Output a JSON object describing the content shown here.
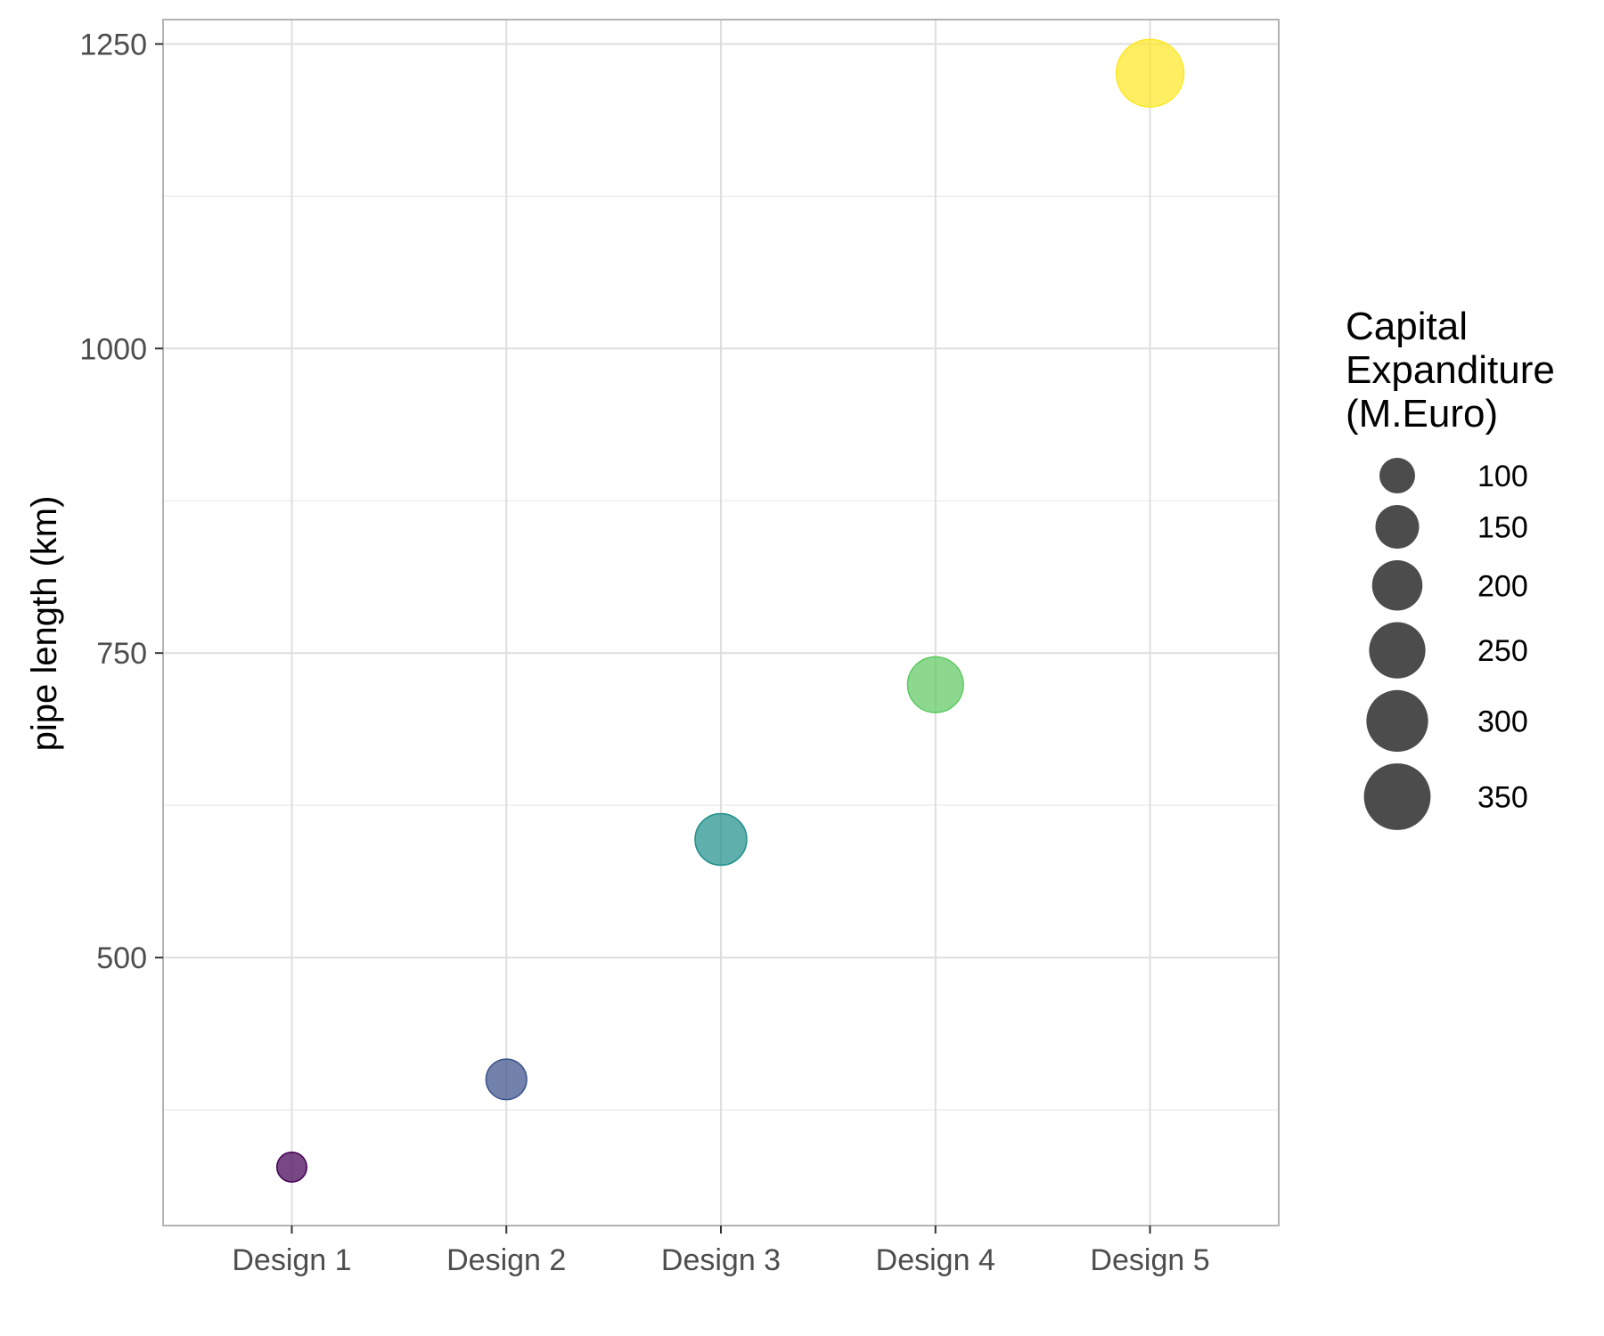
{
  "chart_data": {
    "type": "scatter",
    "categories": [
      "Design 1",
      "Design 2",
      "Design 3",
      "Design 4",
      "Design 5"
    ],
    "points": [
      {
        "x": "Design 1",
        "y": 328,
        "size": 70,
        "color": "#440154"
      },
      {
        "x": "Design 2",
        "y": 400,
        "size": 130,
        "color": "#3b528b"
      },
      {
        "x": "Design 3",
        "y": 597,
        "size": 210,
        "color": "#21908c"
      },
      {
        "x": "Design 4",
        "y": 724,
        "size": 245,
        "color": "#5ec962"
      },
      {
        "x": "Design 5",
        "y": 1226,
        "size": 360,
        "color": "#fde725"
      }
    ],
    "xlabel": "",
    "ylabel": "pipe length (km)",
    "ylim": [
      280,
      1270
    ],
    "yticks": [
      500,
      750,
      1000,
      1250
    ],
    "grid": true,
    "legend": {
      "title_lines": [
        "Capital",
        "Expanditure",
        "(M.Euro)"
      ],
      "position": "right",
      "entries": [
        {
          "label": "100",
          "size": 100
        },
        {
          "label": "150",
          "size": 150
        },
        {
          "label": "200",
          "size": 200
        },
        {
          "label": "250",
          "size": 250
        },
        {
          "label": "300",
          "size": 300
        },
        {
          "label": "350",
          "size": 350
        }
      ],
      "key_color": "#333333"
    }
  }
}
